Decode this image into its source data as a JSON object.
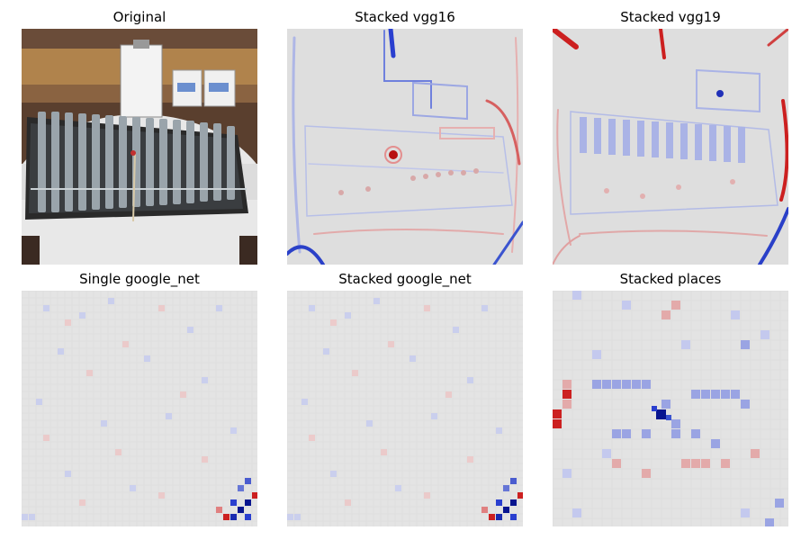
{
  "figure": {
    "panels": [
      {
        "title": "Original",
        "kind": "photo"
      },
      {
        "title": "Stacked vgg16",
        "kind": "saliency-smooth"
      },
      {
        "title": "Stacked vgg19",
        "kind": "saliency-smooth"
      },
      {
        "title": "Single google_net",
        "kind": "saliency-grid"
      },
      {
        "title": "Stacked google_net",
        "kind": "saliency-grid"
      },
      {
        "title": "Stacked places",
        "kind": "saliency-coarse"
      }
    ],
    "colors": {
      "background": "#dedede",
      "positive": "#cc1f1f",
      "negative": "#1f3fcc",
      "strong_negative": "#08158f"
    }
  }
}
